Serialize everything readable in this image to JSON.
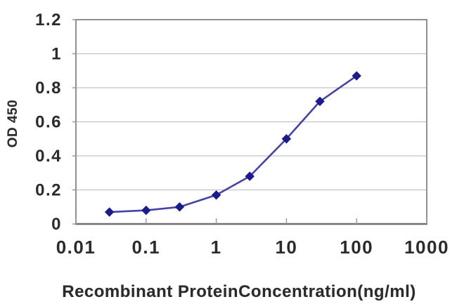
{
  "chart_data": {
    "type": "line",
    "title": "",
    "xlabel": "Recombinant ProteinConcentration(ng/ml)",
    "ylabel": "OD 450",
    "x": [
      0.03,
      0.1,
      0.3,
      1,
      3,
      10,
      30,
      100
    ],
    "y": [
      0.07,
      0.08,
      0.1,
      0.17,
      0.28,
      0.5,
      0.72,
      0.87
    ],
    "xscale": "log",
    "xlim": [
      0.01,
      1000
    ],
    "ylim": [
      0,
      1.2
    ],
    "xticks": [
      "0.01",
      "0.1",
      "1",
      "10",
      "100",
      "1000"
    ],
    "yticks": [
      "0",
      "0.2",
      "0.4",
      "0.6",
      "0.8",
      "1",
      "1.2"
    ],
    "grid": "horizontal",
    "legend": "none",
    "marker": "diamond",
    "colors": {
      "line": "#4444a6",
      "marker": "#1b1b8a",
      "grid": "#c2c2c2",
      "axis": "#8f8f8f",
      "bottom_axis": "#6e6e6e",
      "tick": "#9a9a9a",
      "text": "#2b2b2b",
      "background": "#ffffff"
    }
  }
}
